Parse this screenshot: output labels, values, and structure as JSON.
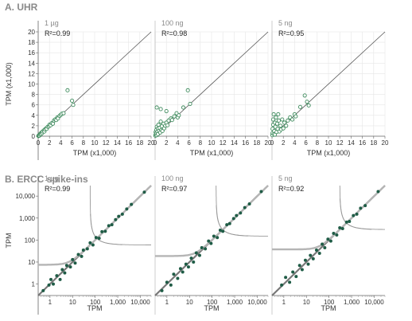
{
  "section_a_title": "A. UHR",
  "section_b_title": "B. ERCC spike-ins",
  "colors": {
    "point_dark": "#1f5c46",
    "point_open": "#3d8a5c",
    "diagonal": "#555555",
    "fit_band": "#999999",
    "grid": "#e6e6e6",
    "divider": "#aaaaaa"
  },
  "chart_data": [
    {
      "type": "scatter",
      "row": "A",
      "panel_label": "1 µg",
      "r2": "R²=0.99",
      "xlabel": "TPM (x1,000)",
      "ylabel": "TPM (x1,000)",
      "xlim": [
        0,
        20
      ],
      "ylim": [
        0,
        20
      ],
      "scale": "linear",
      "xticks": [
        "0",
        "2",
        "4",
        "6",
        "8",
        "10",
        "12",
        "14",
        "16",
        "18",
        "20"
      ],
      "yticks": [
        "0",
        "2",
        "4",
        "6",
        "8",
        "10",
        "12",
        "14",
        "16",
        "18",
        "20"
      ],
      "marker": "open",
      "points": [
        [
          0.05,
          0.05
        ],
        [
          0.1,
          0.15
        ],
        [
          0.2,
          0.1
        ],
        [
          0.3,
          0.3
        ],
        [
          0.4,
          0.5
        ],
        [
          0.5,
          0.4
        ],
        [
          0.6,
          0.7
        ],
        [
          0.7,
          0.6
        ],
        [
          0.8,
          0.9
        ],
        [
          1.0,
          1.1
        ],
        [
          1.1,
          0.9
        ],
        [
          1.2,
          1.3
        ],
        [
          1.4,
          1.5
        ],
        [
          1.5,
          1.4
        ],
        [
          1.7,
          1.8
        ],
        [
          1.9,
          1.9
        ],
        [
          2.0,
          2.2
        ],
        [
          2.2,
          2.1
        ],
        [
          2.4,
          2.5
        ],
        [
          2.6,
          2.4
        ],
        [
          2.8,
          3.0
        ],
        [
          3.0,
          3.2
        ],
        [
          3.2,
          3.1
        ],
        [
          3.4,
          3.6
        ],
        [
          3.5,
          3.4
        ],
        [
          3.8,
          3.9
        ],
        [
          4.0,
          4.1
        ],
        [
          4.2,
          4.3
        ],
        [
          4.5,
          4.4
        ],
        [
          5.2,
          8.8
        ],
        [
          6.0,
          6.8
        ],
        [
          6.2,
          6.0
        ]
      ]
    },
    {
      "type": "scatter",
      "row": "A",
      "panel_label": "100 ng",
      "r2": "R²=0.98",
      "xlabel": "TPM (x1,000)",
      "ylabel": "",
      "xlim": [
        0,
        20
      ],
      "ylim": [
        0,
        20
      ],
      "scale": "linear",
      "xticks": [
        "0",
        "2",
        "4",
        "6",
        "8",
        "10",
        "12",
        "14",
        "16",
        "18",
        "20"
      ],
      "marker": "open",
      "points": [
        [
          0.05,
          0.1
        ],
        [
          0.1,
          0.3
        ],
        [
          0.1,
          0.8
        ],
        [
          0.2,
          0.5
        ],
        [
          0.2,
          1.2
        ],
        [
          0.3,
          0.2
        ],
        [
          0.3,
          1.8
        ],
        [
          0.4,
          0.9
        ],
        [
          0.5,
          1.5
        ],
        [
          0.5,
          0.4
        ],
        [
          0.6,
          2.2
        ],
        [
          0.7,
          1.0
        ],
        [
          0.8,
          1.6
        ],
        [
          0.9,
          0.7
        ],
        [
          1.0,
          2.8
        ],
        [
          1.1,
          1.2
        ],
        [
          1.2,
          1.9
        ],
        [
          1.3,
          1.0
        ],
        [
          1.5,
          2.4
        ],
        [
          1.6,
          1.5
        ],
        [
          1.8,
          2.0
        ],
        [
          2.0,
          2.6
        ],
        [
          2.2,
          2.1
        ],
        [
          2.4,
          3.0
        ],
        [
          2.8,
          3.4
        ],
        [
          3.0,
          3.1
        ],
        [
          3.4,
          3.8
        ],
        [
          3.8,
          4.4
        ],
        [
          4.0,
          3.6
        ],
        [
          4.2,
          4.0
        ],
        [
          0.3,
          5.5
        ],
        [
          1.0,
          5.2
        ],
        [
          2.0,
          4.8
        ],
        [
          5.0,
          5.5
        ],
        [
          5.8,
          8.8
        ],
        [
          6.2,
          6.2
        ]
      ]
    },
    {
      "type": "scatter",
      "row": "A",
      "panel_label": "5 ng",
      "r2": "R²=0.95",
      "xlabel": "TPM (x1,000)",
      "ylabel": "",
      "xlim": [
        0,
        20
      ],
      "ylim": [
        0,
        20
      ],
      "scale": "linear",
      "xticks": [
        "0",
        "2",
        "4",
        "6",
        "8",
        "10",
        "12",
        "14",
        "16",
        "18",
        "20"
      ],
      "marker": "open",
      "points": [
        [
          0.05,
          0.2
        ],
        [
          0.1,
          0.6
        ],
        [
          0.1,
          1.4
        ],
        [
          0.2,
          2.2
        ],
        [
          0.2,
          3.2
        ],
        [
          0.3,
          0.4
        ],
        [
          0.3,
          4.2
        ],
        [
          0.4,
          1.0
        ],
        [
          0.5,
          2.6
        ],
        [
          0.5,
          0.3
        ],
        [
          0.6,
          1.8
        ],
        [
          0.7,
          3.6
        ],
        [
          0.8,
          0.8
        ],
        [
          0.9,
          2.4
        ],
        [
          1.0,
          1.4
        ],
        [
          1.1,
          4.2
        ],
        [
          1.2,
          3.0
        ],
        [
          1.3,
          0.9
        ],
        [
          1.5,
          2.0
        ],
        [
          1.6,
          1.3
        ],
        [
          1.8,
          3.2
        ],
        [
          2.0,
          1.5
        ],
        [
          2.2,
          2.6
        ],
        [
          2.5,
          2.0
        ],
        [
          2.8,
          3.0
        ],
        [
          3.2,
          3.6
        ],
        [
          3.6,
          3.2
        ],
        [
          4.0,
          4.2
        ],
        [
          4.2,
          3.8
        ],
        [
          5.0,
          5.6
        ],
        [
          5.8,
          7.8
        ],
        [
          6.2,
          6.6
        ],
        [
          6.5,
          5.9
        ]
      ]
    },
    {
      "type": "scatter",
      "row": "B",
      "panel_label": "1 µg",
      "r2": "R²=0.99",
      "xlabel": "TPM",
      "ylabel": "TPM",
      "xlim": [
        0.3,
        30000
      ],
      "ylim": [
        0.3,
        30000
      ],
      "scale": "log",
      "xticks": [
        "1",
        "10",
        "100",
        "1,000",
        "10,000"
      ],
      "yticks": [
        "1",
        "10",
        "100",
        "1,000",
        "10,000"
      ],
      "marker": "filled",
      "noise_level": 60,
      "points": [
        [
          0.5,
          0.5
        ],
        [
          0.9,
          0.9
        ],
        [
          1.1,
          1.6
        ],
        [
          1.4,
          1.0
        ],
        [
          2.0,
          2.4
        ],
        [
          2.8,
          1.6
        ],
        [
          3.5,
          4.5
        ],
        [
          4.5,
          3.2
        ],
        [
          5.5,
          7.0
        ],
        [
          8.0,
          6.0
        ],
        [
          10,
          13
        ],
        [
          13,
          9
        ],
        [
          18,
          22
        ],
        [
          25,
          18
        ],
        [
          30,
          35
        ],
        [
          45,
          40
        ],
        [
          60,
          75
        ],
        [
          80,
          60
        ],
        [
          110,
          130
        ],
        [
          150,
          120
        ],
        [
          200,
          240
        ],
        [
          280,
          250
        ],
        [
          400,
          450
        ],
        [
          550,
          500
        ],
        [
          800,
          850
        ],
        [
          1100,
          1200
        ],
        [
          1600,
          1500
        ],
        [
          2500,
          2600
        ],
        [
          4000,
          4200
        ],
        [
          15000,
          15000
        ]
      ]
    },
    {
      "type": "scatter",
      "row": "B",
      "panel_label": "100 ng",
      "r2": "R²=0.97",
      "xlabel": "TPM",
      "ylabel": "",
      "xlim": [
        0.3,
        30000
      ],
      "ylim": [
        0.3,
        30000
      ],
      "scale": "log",
      "xticks": [
        "1",
        "10",
        "100",
        "1,000",
        "10,000"
      ],
      "marker": "filled",
      "noise_level": 150,
      "points": [
        [
          0.6,
          0.5
        ],
        [
          1.0,
          1.2
        ],
        [
          1.5,
          0.9
        ],
        [
          2.0,
          2.8
        ],
        [
          3.0,
          1.8
        ],
        [
          4.0,
          5.0
        ],
        [
          5.0,
          3.5
        ],
        [
          7.0,
          8.0
        ],
        [
          9.0,
          6.0
        ],
        [
          12,
          15
        ],
        [
          15,
          10
        ],
        [
          20,
          26
        ],
        [
          28,
          20
        ],
        [
          35,
          45
        ],
        [
          50,
          40
        ],
        [
          70,
          90
        ],
        [
          90,
          70
        ],
        [
          120,
          150
        ],
        [
          170,
          130
        ],
        [
          230,
          280
        ],
        [
          300,
          250
        ],
        [
          450,
          500
        ],
        [
          600,
          560
        ],
        [
          900,
          950
        ],
        [
          1200,
          1300
        ],
        [
          1800,
          1700
        ],
        [
          2800,
          3000
        ],
        [
          4500,
          4400
        ],
        [
          15000,
          16000
        ]
      ]
    },
    {
      "type": "scatter",
      "row": "B",
      "panel_label": "5 ng",
      "r2": "R²=0.92",
      "xlabel": "TPM",
      "ylabel": "",
      "xlim": [
        0.3,
        30000
      ],
      "ylim": [
        0.3,
        30000
      ],
      "scale": "log",
      "xticks": [
        "1",
        "10",
        "100",
        "1,000",
        "10,000"
      ],
      "marker": "filled",
      "noise_level": 300,
      "points": [
        [
          0.8,
          0.9
        ],
        [
          1.2,
          2.0
        ],
        [
          1.8,
          1.2
        ],
        [
          2.5,
          3.5
        ],
        [
          3.5,
          2.2
        ],
        [
          5.0,
          7.0
        ],
        [
          6.5,
          4.5
        ],
        [
          9.0,
          12
        ],
        [
          12,
          8
        ],
        [
          15,
          20
        ],
        [
          20,
          14
        ],
        [
          28,
          35
        ],
        [
          38,
          25
        ],
        [
          50,
          65
        ],
        [
          65,
          45
        ],
        [
          90,
          110
        ],
        [
          120,
          90
        ],
        [
          160,
          200
        ],
        [
          220,
          170
        ],
        [
          300,
          360
        ],
        [
          400,
          330
        ],
        [
          600,
          650
        ],
        [
          800,
          700
        ],
        [
          1200,
          1300
        ],
        [
          1700,
          1500
        ],
        [
          2500,
          2800
        ],
        [
          4000,
          3700
        ],
        [
          15000,
          16000
        ]
      ]
    }
  ]
}
